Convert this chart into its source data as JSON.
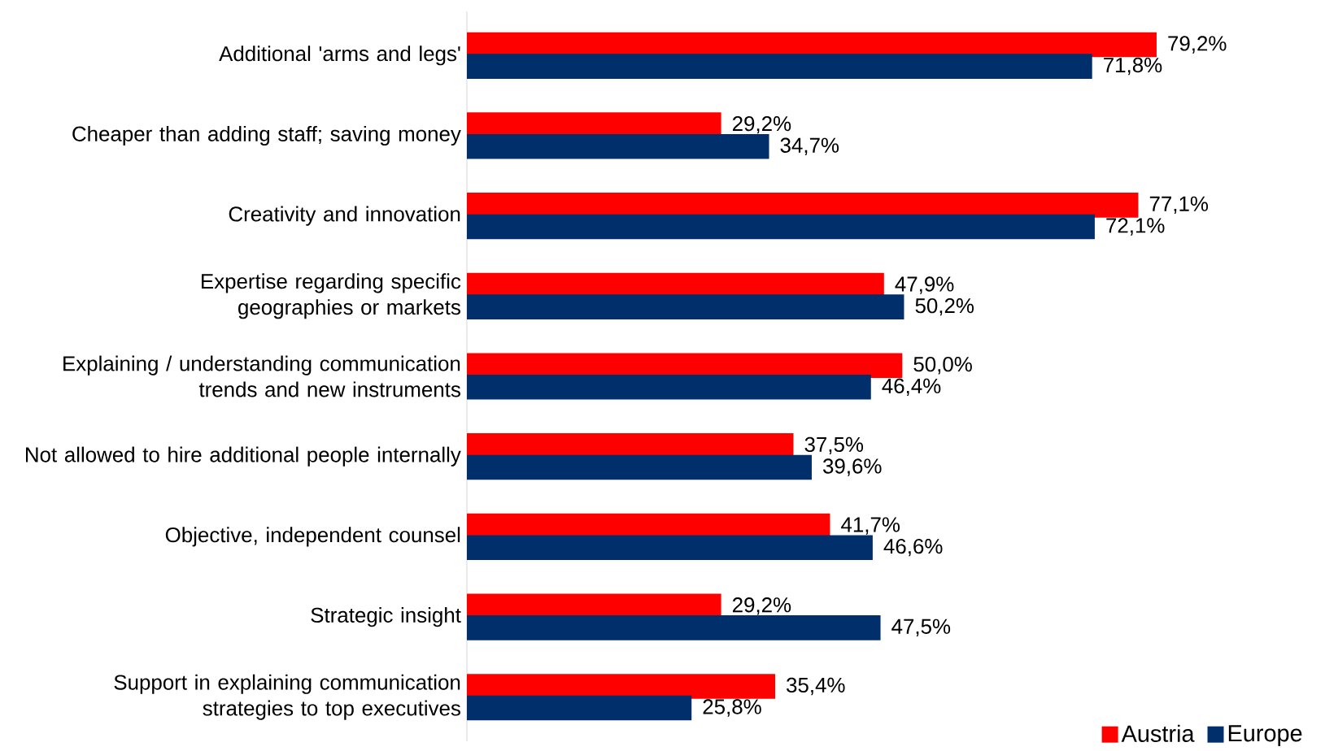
{
  "chart_data": {
    "type": "bar",
    "orientation": "horizontal",
    "categories": [
      "Additional 'arms and legs'",
      "Cheaper than adding staff; saving money",
      "Creativity and innovation",
      "Expertise regarding specific geographies or markets",
      "Explaining / understanding communication trends and new instruments",
      "Not allowed to hire additional people internally",
      "Objective, independent counsel",
      "Strategic insight",
      "Support in explaining communication strategies to top executives"
    ],
    "series": [
      {
        "name": "Austria",
        "color": "#ff0000",
        "values": [
          79.2,
          29.2,
          77.1,
          47.9,
          50.0,
          37.5,
          41.7,
          29.2,
          35.4
        ],
        "value_labels": [
          "79,2%",
          "29,2%",
          "77,1%",
          "47,9%",
          "50,0%",
          "37,5%",
          "41,7%",
          "29,2%",
          "35,4%"
        ]
      },
      {
        "name": "Europe",
        "color": "#002f6c",
        "values": [
          71.8,
          34.7,
          72.1,
          50.2,
          46.4,
          39.6,
          46.6,
          47.5,
          25.8
        ],
        "value_labels": [
          "71,8%",
          "34,7%",
          "72,1%",
          "50,2%",
          "46,4%",
          "39,6%",
          "46,6%",
          "47,5%",
          "25,8%"
        ]
      }
    ],
    "legend": "bottom right"
  }
}
